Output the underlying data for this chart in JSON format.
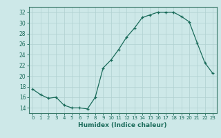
{
  "x": [
    0,
    1,
    2,
    3,
    4,
    5,
    6,
    7,
    8,
    9,
    10,
    11,
    12,
    13,
    14,
    15,
    16,
    17,
    18,
    19,
    20,
    21,
    22,
    23
  ],
  "y": [
    17.5,
    16.5,
    15.8,
    16.0,
    14.5,
    14.0,
    14.0,
    13.8,
    16.0,
    21.5,
    23.0,
    25.0,
    27.3,
    29.0,
    31.0,
    31.5,
    32.0,
    32.0,
    32.0,
    31.2,
    30.2,
    26.3,
    22.5,
    20.5
  ],
  "xlim": [
    -0.5,
    23.5
  ],
  "ylim": [
    13,
    33
  ],
  "yticks": [
    14,
    16,
    18,
    20,
    22,
    24,
    26,
    28,
    30,
    32
  ],
  "xticks": [
    0,
    1,
    2,
    3,
    4,
    5,
    6,
    7,
    8,
    9,
    10,
    11,
    12,
    13,
    14,
    15,
    16,
    17,
    18,
    19,
    20,
    21,
    22,
    23
  ],
  "xlabel": "Humidex (Indice chaleur)",
  "line_color": "#1a6b5a",
  "marker": "+",
  "bg_color": "#cde8e8",
  "grid_color": "#b0d0d0",
  "spine_color": "#3a7a6a"
}
